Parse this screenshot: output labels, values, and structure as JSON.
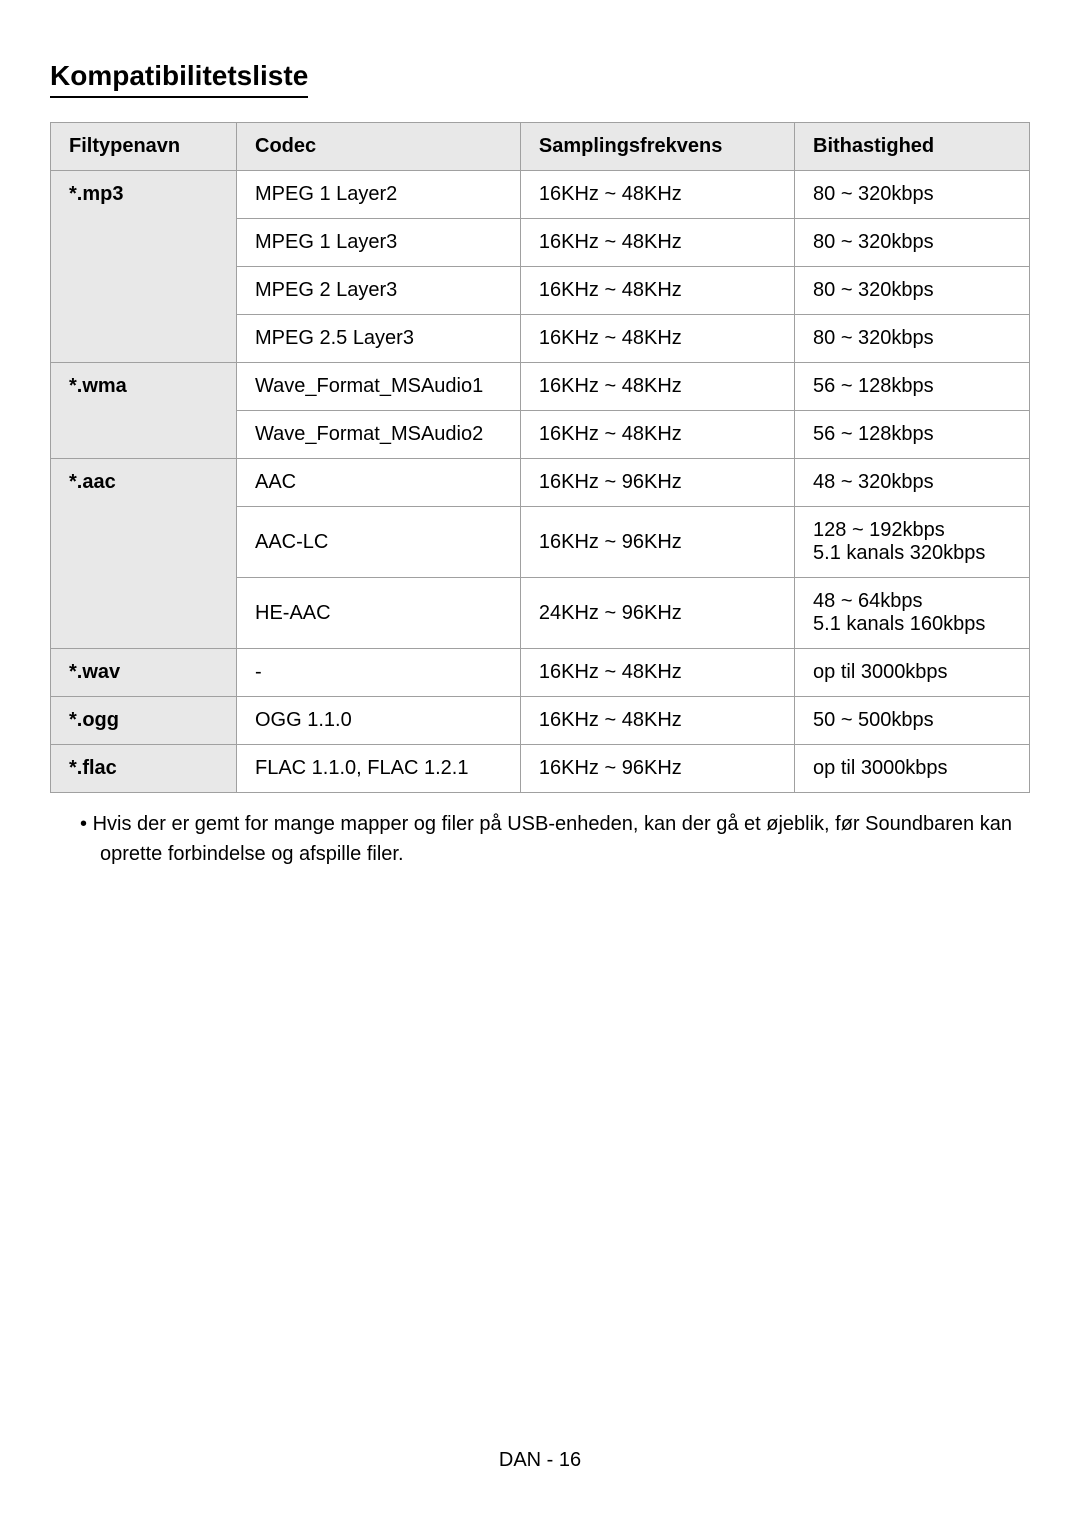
{
  "title": "Kompatibilitetsliste",
  "table": {
    "columns": [
      "Filtypenavn",
      "Codec",
      "Samplingsfrekvens",
      "Bithastighed"
    ],
    "rows": [
      {
        "filetype": "*.mp3",
        "codec": "MPEG 1 Layer2",
        "sampling": "16KHz ~ 48KHz",
        "bitrate": "80 ~ 320kbps",
        "rowspan": 4
      },
      {
        "filetype": "",
        "codec": "MPEG 1 Layer3",
        "sampling": "16KHz ~ 48KHz",
        "bitrate": "80 ~ 320kbps"
      },
      {
        "filetype": "",
        "codec": "MPEG 2 Layer3",
        "sampling": "16KHz ~ 48KHz",
        "bitrate": "80 ~ 320kbps"
      },
      {
        "filetype": "",
        "codec": "MPEG 2.5 Layer3",
        "sampling": "16KHz ~ 48KHz",
        "bitrate": "80 ~ 320kbps"
      },
      {
        "filetype": "*.wma",
        "codec": "Wave_Format_MSAudio1",
        "sampling": "16KHz ~ 48KHz",
        "bitrate": "56 ~ 128kbps",
        "rowspan": 2
      },
      {
        "filetype": "",
        "codec": "Wave_Format_MSAudio2",
        "sampling": "16KHz ~ 48KHz",
        "bitrate": "56 ~ 128kbps"
      },
      {
        "filetype": "*.aac",
        "codec": "AAC",
        "sampling": "16KHz ~ 96KHz",
        "bitrate": "48 ~ 320kbps",
        "rowspan": 3
      },
      {
        "filetype": "",
        "codec": "AAC-LC",
        "sampling": "16KHz ~ 96KHz",
        "bitrate": "128 ~ 192kbps\n5.1 kanals 320kbps"
      },
      {
        "filetype": "",
        "codec": "HE-AAC",
        "sampling": "24KHz ~ 96KHz",
        "bitrate": "48 ~ 64kbps\n5.1 kanals 160kbps"
      },
      {
        "filetype": "*.wav",
        "codec": "-",
        "sampling": "16KHz ~ 48KHz",
        "bitrate": "op til 3000kbps",
        "rowspan": 1
      },
      {
        "filetype": "*.ogg",
        "codec": "OGG 1.1.0",
        "sampling": "16KHz ~ 48KHz",
        "bitrate": "50 ~ 500kbps",
        "rowspan": 1
      },
      {
        "filetype": "*.flac",
        "codec": "FLAC 1.1.0, FLAC 1.2.1",
        "sampling": "16KHz ~ 96KHz",
        "bitrate": "op til 3000kbps",
        "rowspan": 1
      }
    ]
  },
  "note": "Hvis der er gemt for mange mapper og filer på USB-enheden, kan der gå et øjeblik, før Soundbaren kan oprette forbindelse og afspille filer.",
  "footer": "DAN - 16",
  "colors": {
    "header_bg": "#e8e8e8",
    "border": "#a0a0a0",
    "text": "#000000",
    "background": "#ffffff"
  },
  "column_widths": [
    "19%",
    "29%",
    "28%",
    "24%"
  ]
}
